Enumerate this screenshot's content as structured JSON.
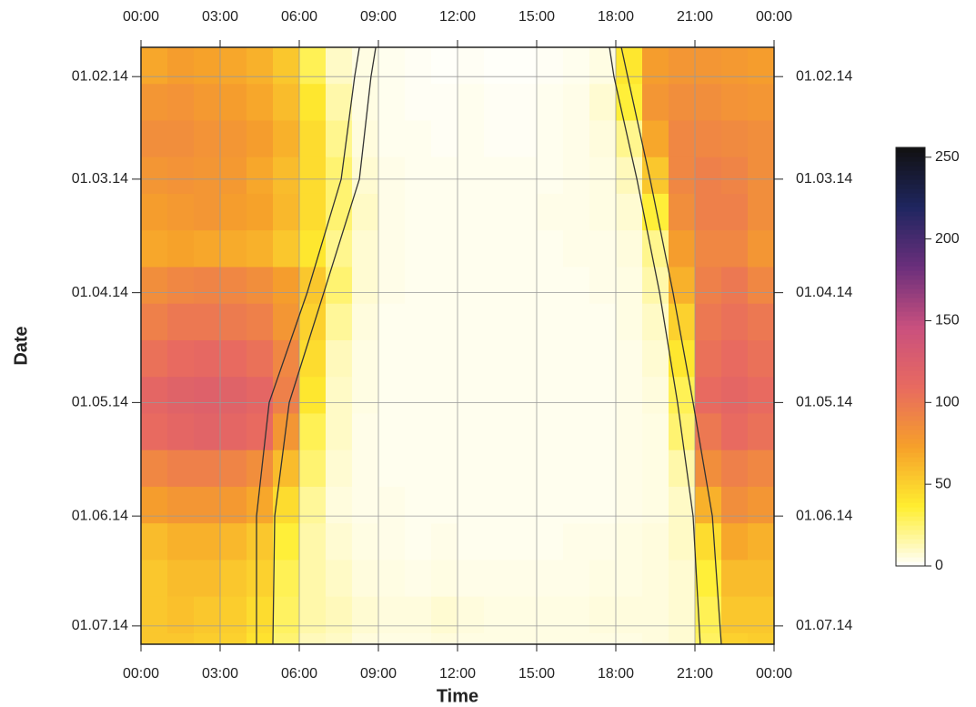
{
  "chart_data": {
    "type": "heatmap",
    "xlabel": "Time",
    "ylabel": "Date",
    "xlim": [
      0,
      24
    ],
    "xticks": [
      {
        "value": 0,
        "label": "00:00"
      },
      {
        "value": 3,
        "label": "03:00"
      },
      {
        "value": 6,
        "label": "06:00"
      },
      {
        "value": 9,
        "label": "09:00"
      },
      {
        "value": 12,
        "label": "12:00"
      },
      {
        "value": 15,
        "label": "15:00"
      },
      {
        "value": 18,
        "label": "18:00"
      },
      {
        "value": 21,
        "label": "21:00"
      },
      {
        "value": 24,
        "label": "00:00"
      }
    ],
    "ylim": [
      24,
      187
    ],
    "yticks": [
      {
        "value": 32,
        "label": "01.02.14"
      },
      {
        "value": 60,
        "label": "01.03.14"
      },
      {
        "value": 91,
        "label": "01.04.14"
      },
      {
        "value": 121,
        "label": "01.05.14"
      },
      {
        "value": 152,
        "label": "01.06.14"
      },
      {
        "value": 182,
        "label": "01.07.14"
      }
    ],
    "grid": true,
    "x_bins": [
      0,
      1,
      2,
      3,
      4,
      5,
      6,
      7,
      8,
      9,
      10,
      11,
      12,
      13,
      14,
      15,
      16,
      17,
      18,
      19,
      20,
      21,
      22,
      23,
      24
    ],
    "y_bins": [
      24,
      34,
      44,
      54,
      64,
      74,
      84,
      94,
      104,
      114,
      124,
      134,
      144,
      154,
      164,
      174,
      184,
      187
    ],
    "z": [
      [
        70,
        75,
        72,
        70,
        65,
        55,
        30,
        10,
        5,
        3,
        2,
        1,
        2,
        1,
        1,
        2,
        3,
        5,
        40,
        75,
        80,
        80,
        78,
        75
      ],
      [
        80,
        82,
        78,
        75,
        70,
        60,
        40,
        15,
        5,
        3,
        2,
        2,
        3,
        2,
        2,
        3,
        4,
        8,
        35,
        80,
        85,
        85,
        82,
        80
      ],
      [
        85,
        85,
        82,
        80,
        75,
        65,
        45,
        20,
        6,
        3,
        3,
        2,
        3,
        2,
        2,
        3,
        4,
        6,
        20,
        70,
        90,
        90,
        88,
        85
      ],
      [
        80,
        82,
        80,
        78,
        70,
        60,
        45,
        25,
        8,
        4,
        3,
        3,
        3,
        3,
        3,
        3,
        4,
        5,
        12,
        55,
        90,
        95,
        92,
        85
      ],
      [
        75,
        78,
        80,
        75,
        72,
        62,
        45,
        25,
        10,
        4,
        3,
        3,
        3,
        3,
        3,
        4,
        4,
        5,
        8,
        35,
        85,
        95,
        95,
        85
      ],
      [
        70,
        72,
        70,
        68,
        65,
        55,
        40,
        20,
        8,
        4,
        3,
        3,
        3,
        3,
        3,
        3,
        4,
        4,
        6,
        20,
        75,
        90,
        90,
        80
      ],
      [
        85,
        90,
        92,
        90,
        85,
        75,
        55,
        25,
        8,
        4,
        3,
        3,
        3,
        3,
        3,
        3,
        3,
        4,
        5,
        15,
        65,
        95,
        100,
        90
      ],
      [
        95,
        100,
        100,
        98,
        95,
        80,
        50,
        18,
        6,
        3,
        3,
        3,
        3,
        3,
        3,
        3,
        3,
        3,
        5,
        10,
        50,
        100,
        105,
        100
      ],
      [
        105,
        110,
        112,
        110,
        105,
        90,
        45,
        12,
        5,
        3,
        3,
        3,
        3,
        3,
        3,
        3,
        3,
        3,
        4,
        8,
        40,
        105,
        110,
        105
      ],
      [
        115,
        120,
        122,
        120,
        115,
        95,
        40,
        10,
        5,
        3,
        3,
        3,
        3,
        3,
        3,
        3,
        3,
        3,
        4,
        6,
        30,
        110,
        115,
        110
      ],
      [
        110,
        115,
        118,
        115,
        110,
        80,
        30,
        10,
        4,
        3,
        3,
        3,
        3,
        3,
        3,
        3,
        3,
        3,
        4,
        5,
        25,
        100,
        110,
        105
      ],
      [
        90,
        95,
        95,
        92,
        85,
        60,
        25,
        8,
        4,
        3,
        3,
        3,
        3,
        3,
        3,
        3,
        3,
        3,
        4,
        5,
        15,
        85,
        95,
        90
      ],
      [
        75,
        80,
        80,
        78,
        70,
        45,
        18,
        6,
        4,
        4,
        3,
        3,
        3,
        3,
        3,
        3,
        3,
        3,
        4,
        5,
        10,
        65,
        85,
        80
      ],
      [
        60,
        65,
        65,
        62,
        55,
        35,
        15,
        8,
        5,
        4,
        3,
        4,
        3,
        3,
        3,
        3,
        4,
        4,
        5,
        6,
        10,
        45,
        70,
        65
      ],
      [
        55,
        60,
        60,
        55,
        50,
        30,
        15,
        10,
        6,
        5,
        4,
        5,
        4,
        4,
        4,
        4,
        4,
        5,
        5,
        6,
        8,
        35,
        60,
        60
      ],
      [
        55,
        58,
        55,
        52,
        45,
        28,
        15,
        12,
        8,
        6,
        6,
        8,
        6,
        5,
        5,
        5,
        5,
        6,
        6,
        6,
        8,
        30,
        55,
        55
      ],
      [
        55,
        55,
        52,
        50,
        42,
        25,
        12,
        10,
        6,
        5,
        5,
        6,
        5,
        5,
        5,
        5,
        5,
        5,
        5,
        6,
        8,
        28,
        50,
        52
      ]
    ],
    "zlim": [
      0,
      256
    ],
    "zticks": [
      0,
      50,
      100,
      150,
      200,
      250
    ],
    "colormap": [
      "#ffffff",
      "#ffee30",
      "#f6a02a",
      "#e86a60",
      "#c9507e",
      "#6b2f7c",
      "#1f2660",
      "#111111"
    ],
    "curves": [
      {
        "color": "#333333",
        "y": [
          24,
          32,
          60,
          91,
          121,
          152,
          187
        ],
        "x": [
          8.28,
          8.1,
          7.59,
          6.3,
          4.86,
          4.38,
          4.38
        ]
      },
      {
        "color": "#333333",
        "y": [
          24,
          32,
          60,
          91,
          121,
          152,
          187
        ],
        "x": [
          8.9,
          8.72,
          8.28,
          6.93,
          5.62,
          5.07,
          5.0
        ]
      },
      {
        "color": "#333333",
        "y": [
          24,
          32,
          60,
          91,
          121,
          152,
          187
        ],
        "x": [
          17.76,
          17.93,
          18.8,
          19.66,
          20.34,
          20.93,
          21.2
        ]
      },
      {
        "color": "#333333",
        "y": [
          24,
          32,
          60,
          91,
          121,
          152,
          187
        ],
        "x": [
          18.21,
          18.45,
          19.3,
          20.17,
          20.93,
          21.66,
          22.0
        ]
      }
    ]
  }
}
